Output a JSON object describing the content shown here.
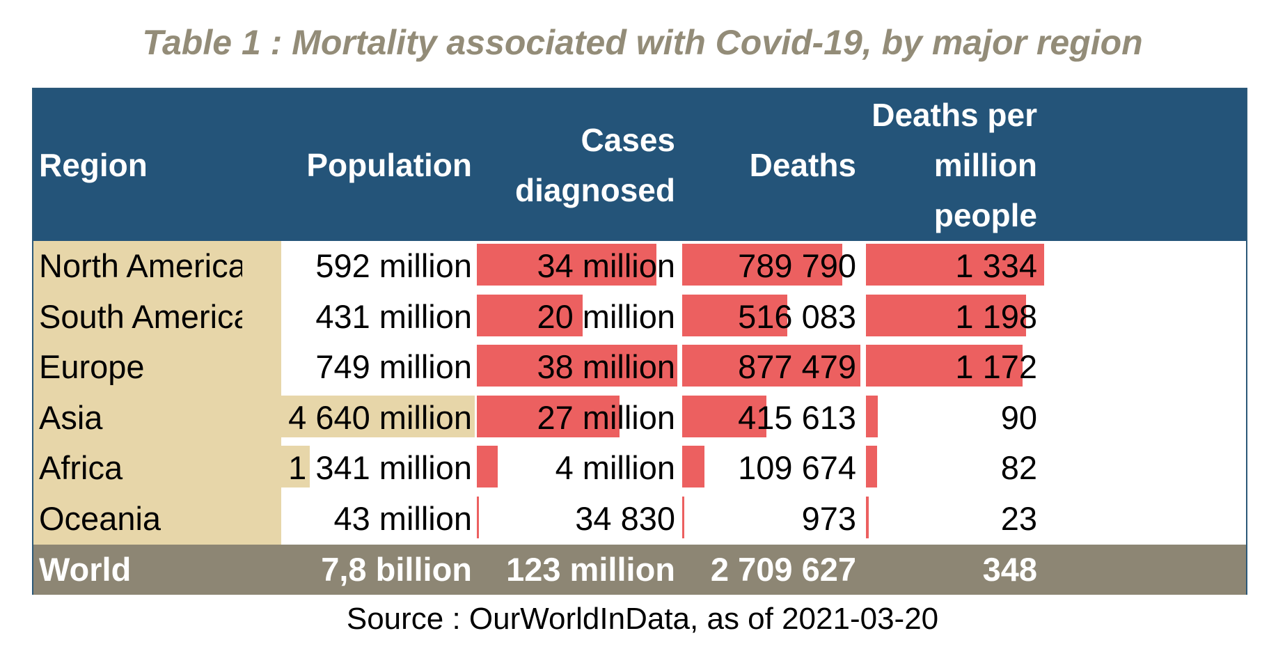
{
  "title": "Table 1 : Mortality associated with Covid-19, by major region",
  "source": "Source : OurWorldInData, as of 2021-03-20",
  "colors": {
    "header_bg": "#245479",
    "region_bg": "#e7d6a9",
    "population_bar": "#e7d6a9",
    "red_bar": "#ec6060",
    "total_bg": "#8d8674",
    "title_color": "#938c78"
  },
  "header": {
    "region": [
      "Region"
    ],
    "population": [
      "Population"
    ],
    "cases": [
      "Cases",
      "diagnosed"
    ],
    "deaths": [
      "Deaths"
    ],
    "per_million": [
      "Deaths per",
      "million",
      "people"
    ]
  },
  "rows": [
    {
      "region": "North America",
      "population": "592 million",
      "cases": "34 million",
      "deaths": "789 790",
      "per_million": "1 334"
    },
    {
      "region": "South America",
      "population": "431 million",
      "cases": "20 million",
      "deaths": "516 083",
      "per_million": "1 198"
    },
    {
      "region": "Europe",
      "population": "749 million",
      "cases": "38 million",
      "deaths": "877 479",
      "per_million": "1 172"
    },
    {
      "region": "Asia",
      "population": "4 640 million",
      "cases": "27 million",
      "deaths": "415 613",
      "per_million": "90"
    },
    {
      "region": "Africa",
      "population": "1 341 million",
      "cases": "4 million",
      "deaths": "109 674",
      "per_million": "82"
    },
    {
      "region": "Oceania",
      "population": "43 million",
      "cases": "34 830",
      "deaths": "973",
      "per_million": "23"
    }
  ],
  "total": {
    "region": "World",
    "population": "7,8 billion",
    "cases": "123 million",
    "deaths": "2 709 627",
    "per_million": "348"
  },
  "chart_data": {
    "type": "table",
    "title": "Table 1 : Mortality associated with Covid-19, by major region",
    "columns": [
      "Region",
      "Population",
      "Cases diagnosed",
      "Deaths",
      "Deaths per million people"
    ],
    "categories": [
      "North America",
      "South America",
      "Europe",
      "Asia",
      "Africa",
      "Oceania"
    ],
    "series": [
      {
        "name": "Population",
        "unit": "million",
        "values": [
          592,
          431,
          749,
          4640,
          1341,
          43
        ]
      },
      {
        "name": "Cases diagnosed",
        "values": [
          34000000,
          20000000,
          38000000,
          27000000,
          4000000,
          34830
        ]
      },
      {
        "name": "Deaths",
        "values": [
          789790,
          516083,
          877479,
          415613,
          109674,
          973
        ]
      },
      {
        "name": "Deaths per million people",
        "values": [
          1334,
          1198,
          1172,
          90,
          82,
          23
        ]
      }
    ]
  }
}
